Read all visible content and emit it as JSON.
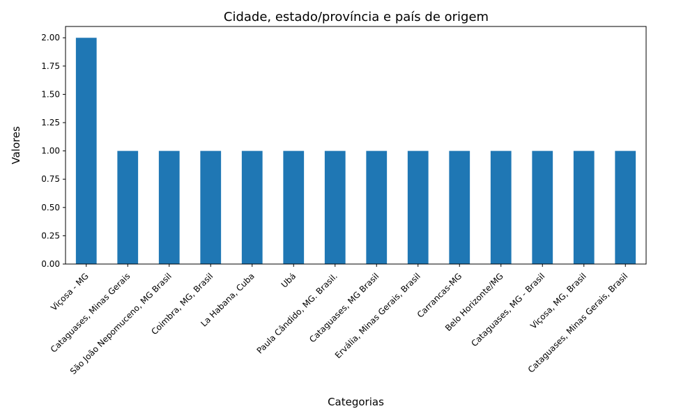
{
  "chart_data": {
    "type": "bar",
    "title": "Cidade, estado/província e país de origem",
    "xlabel": "Categorias",
    "ylabel": "Valores",
    "categories": [
      "Viçosa - MG",
      "Cataguases, Minas Gerais",
      "São João Nepomuceno, MG Brasil",
      "Coimbra, MG, Brasil",
      "La Habana, Cuba",
      "Ubá",
      "Paula Cândido, MG. Brasil.",
      "Cataguases, MG Brasil",
      "Ervália, Minas Gerais, Brasil",
      "Carrancas-MG",
      "Belo Horizonte/MG",
      "Cataguases, MG - Brasil",
      "Viçosa, MG, Brasil",
      "Cataguases, Minas Gerais, Brasil"
    ],
    "values": [
      2,
      1,
      1,
      1,
      1,
      1,
      1,
      1,
      1,
      1,
      1,
      1,
      1,
      1
    ],
    "ylim": [
      0,
      2.1
    ],
    "yticks": [
      "0.00",
      "0.25",
      "0.50",
      "0.75",
      "1.00",
      "1.25",
      "1.50",
      "1.75",
      "2.00"
    ],
    "grid": false,
    "legend": "none",
    "bar_color": "#1f77b4"
  }
}
